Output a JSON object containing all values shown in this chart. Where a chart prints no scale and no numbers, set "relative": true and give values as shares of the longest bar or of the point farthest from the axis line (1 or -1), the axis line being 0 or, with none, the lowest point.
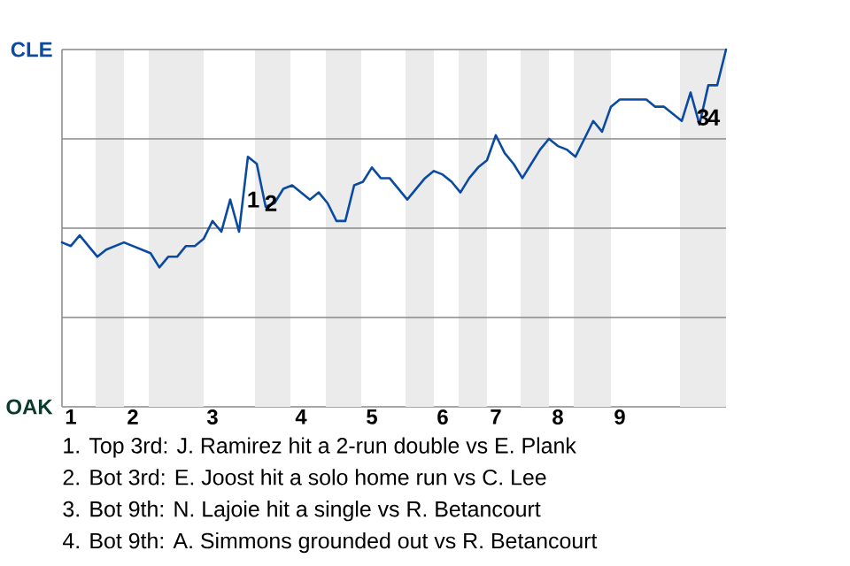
{
  "chart_data": {
    "type": "line",
    "relative": true,
    "categories": [
      null,
      "1",
      null,
      null,
      null,
      null,
      null,
      null,
      "2",
      null,
      null,
      null,
      null,
      null,
      null,
      null,
      null,
      "3",
      null,
      null,
      null,
      null,
      null,
      null,
      null,
      null,
      null,
      "4",
      null,
      null,
      null,
      null,
      null,
      null,
      null,
      "5",
      null,
      null,
      null,
      null,
      null,
      null,
      null,
      "6",
      null,
      null,
      null,
      null,
      null,
      "7",
      null,
      null,
      null,
      null,
      null,
      null,
      "8",
      null,
      null,
      null,
      null,
      null,
      null,
      "9",
      null,
      null,
      null,
      null,
      null,
      null,
      null,
      null,
      null,
      null,
      null,
      null
    ],
    "marker": "none",
    "line_style": "solid",
    "ref_lines": [
      {
        "axis": "y",
        "value": 0.25,
        "color": "#888888"
      },
      {
        "axis": "y",
        "value": 0.5,
        "color": "#888888"
      },
      {
        "axis": "y",
        "value": 0.75,
        "color": "#888888"
      },
      {
        "axis": "y",
        "value": 1,
        "color": "#888888"
      }
    ],
    "series": [
      {
        "color": "#0a4aa0",
        "values": [
          0.46,
          0.45,
          0.48,
          0.45,
          0.42,
          0.44,
          0.45,
          0.46,
          0.45,
          0.44,
          0.43,
          0.39,
          0.42,
          0.42,
          0.45,
          0.45,
          0.47,
          0.52,
          0.49,
          0.58,
          0.49,
          0.7,
          0.68,
          0.56,
          0.57,
          0.61,
          0.62,
          0.6,
          0.58,
          0.6,
          0.57,
          0.52,
          0.52,
          0.62,
          0.63,
          0.67,
          0.64,
          0.64,
          0.61,
          0.58,
          0.61,
          0.64,
          0.66,
          0.65,
          0.63,
          0.6,
          0.64,
          0.67,
          0.69,
          0.76,
          0.71,
          0.68,
          0.64,
          0.68,
          0.72,
          0.75,
          0.73,
          0.72,
          0.7,
          0.75,
          0.8,
          0.77,
          0.84,
          0.86,
          0.86,
          0.86,
          0.86,
          0.84,
          0.84,
          0.82,
          0.8,
          0.88,
          0.79,
          0.9,
          0.9,
          1.0
        ]
      }
    ],
    "annotations": [
      "1",
      "2",
      "3",
      "4",
      "CLE",
      "OAK",
      "1. Top 3rd: J. Ramirez hit a 2-run double vs E. Plank",
      "2. Bot 3rd: E. Joost hit a solo home run vs C. Lee",
      "3. Bot 9th: N. Lajoie hit a single vs R. Betancourt",
      "4. Bot 9th: A. Simmons grounded out vs R. Betancourt"
    ]
  }
}
